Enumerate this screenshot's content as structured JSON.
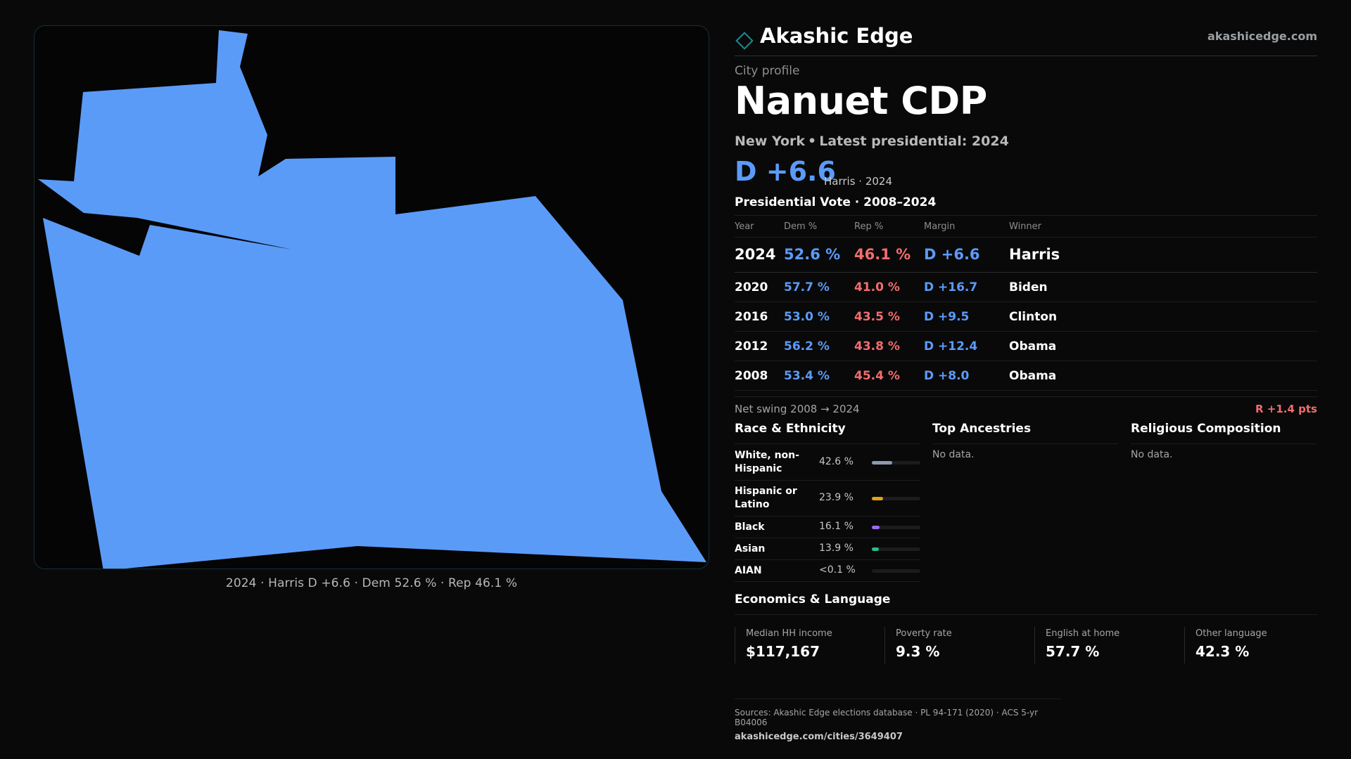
{
  "map": {
    "caption": "2024 · Harris D +6.6 · Dem 52.6 % · Rep 46.1 %",
    "fill_color": "#5b9bf8",
    "frame_border_color": "#143036"
  },
  "brand": {
    "name": "Akashic Edge",
    "url": "akashicedge.com",
    "logo_icon": "diamond-outline-icon",
    "accent_color": "#1c8a8f"
  },
  "header": {
    "kicker": "City profile",
    "title": "Nanuet CDP",
    "state": "New York",
    "latest_label": "Latest presidential: 2024"
  },
  "latest": {
    "margin": "D +6.6",
    "note": "Harris · 2024"
  },
  "vote": {
    "heading": "Presidential Vote · 2008–2024",
    "columns": {
      "year": "Year",
      "dem": "Dem %",
      "rep": "Rep %",
      "margin": "Margin",
      "winner": "Winner"
    },
    "rows": [
      {
        "year": "2024",
        "dem": "52.6 %",
        "rep": "46.1 %",
        "margin": "D +6.6",
        "winner": "Harris"
      },
      {
        "year": "2020",
        "dem": "57.7 %",
        "rep": "41.0 %",
        "margin": "D +16.7",
        "winner": "Biden"
      },
      {
        "year": "2016",
        "dem": "53.0 %",
        "rep": "43.5 %",
        "margin": "D +9.5",
        "winner": "Clinton"
      },
      {
        "year": "2012",
        "dem": "56.2 %",
        "rep": "43.8 %",
        "margin": "D +12.4",
        "winner": "Obama"
      },
      {
        "year": "2008",
        "dem": "53.4 %",
        "rep": "45.4 %",
        "margin": "D +8.0",
        "winner": "Obama"
      }
    ],
    "colors": {
      "dem": "#5b9bf8",
      "rep": "#f26d6d"
    }
  },
  "swing": {
    "label": "Net swing 2008 → 2024",
    "value": "R +1.4 pts"
  },
  "race": {
    "heading": "Race & Ethnicity",
    "rows": [
      {
        "name": "White, non-Hispanic",
        "pct": "42.6 %",
        "share": 0.426,
        "color": "#8a9bb0"
      },
      {
        "name": "Hispanic or Latino",
        "pct": "23.9 %",
        "share": 0.239,
        "color": "#e0a21b"
      },
      {
        "name": "Black",
        "pct": "16.1 %",
        "share": 0.161,
        "color": "#9b6cf0"
      },
      {
        "name": "Asian",
        "pct": "13.9 %",
        "share": 0.139,
        "color": "#22c08a"
      },
      {
        "name": "AIAN",
        "pct": "<0.1 %",
        "share": 0.0,
        "color": "#8a9bb0"
      }
    ]
  },
  "ancestries": {
    "heading": "Top Ancestries",
    "empty": "No data."
  },
  "religion": {
    "heading": "Religious Composition",
    "empty": "No data."
  },
  "economics": {
    "heading": "Economics & Language",
    "items": [
      {
        "label": "Median HH income",
        "value": "$117,167"
      },
      {
        "label": "Poverty rate",
        "value": "9.3 %"
      },
      {
        "label": "English at home",
        "value": "57.7 %"
      },
      {
        "label": "Other language",
        "value": "42.3 %"
      }
    ]
  },
  "sources": {
    "text": "Sources: Akashic Edge elections database · PL 94-171 (2020) · ACS 5-yr B04006",
    "url": "akashicedge.com/cities/3649407"
  }
}
